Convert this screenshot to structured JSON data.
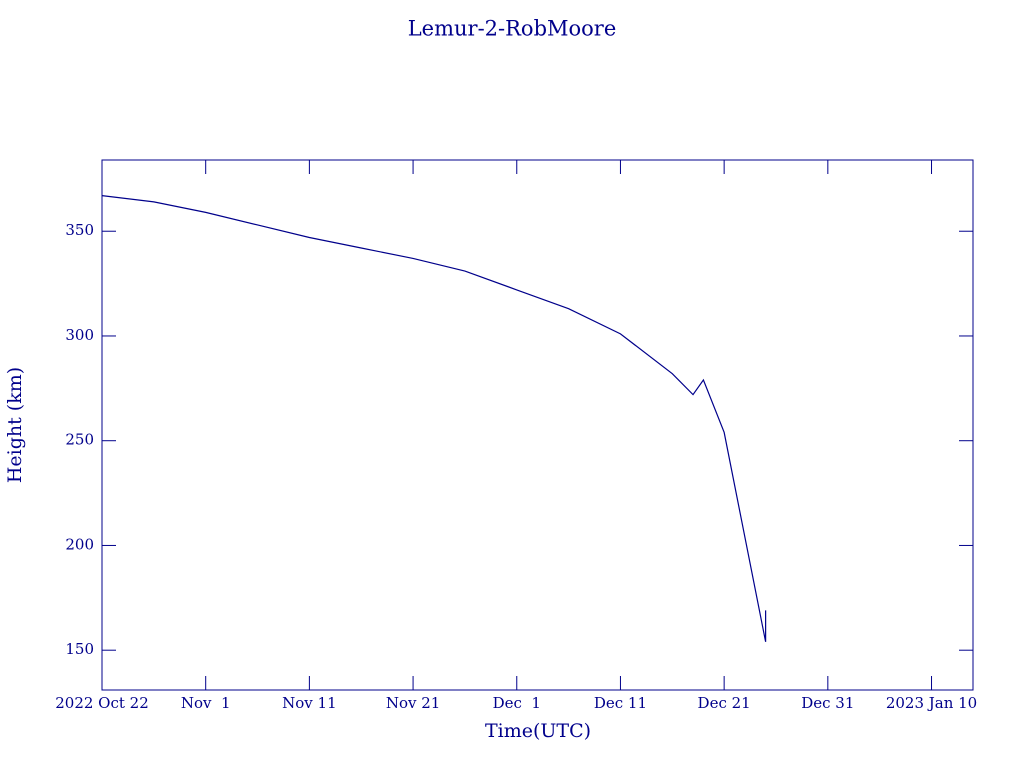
{
  "chart_data": {
    "type": "line",
    "title": "Lemur-2-RobMoore",
    "x_label": "Time(UTC)",
    "y_label": "Height (km)",
    "color": "#00008b",
    "x": [
      "2022-10-22",
      "2022-10-27",
      "2022-11-01",
      "2022-11-06",
      "2022-11-11",
      "2022-11-16",
      "2022-11-21",
      "2022-11-26",
      "2022-12-01",
      "2022-12-06",
      "2022-12-11",
      "2022-12-16",
      "2022-12-18",
      "2022-12-19",
      "2022-12-21",
      "2022-12-25",
      "2022-12-25"
    ],
    "series": [
      {
        "values": [
          367,
          364,
          359,
          353,
          347,
          342,
          337,
          331,
          322,
          313,
          301,
          282,
          272,
          279,
          254,
          154,
          169
        ]
      }
    ],
    "xlim": [
      "2022-10-22",
      "2023-01-14"
    ],
    "ylim": [
      131,
      384
    ],
    "yticks": [
      150,
      200,
      250,
      300,
      350
    ],
    "xticks": [
      {
        "value": "2022-10-22",
        "label": "2022 Oct 22"
      },
      {
        "value": "2022-11-01",
        "label": "Nov  1"
      },
      {
        "value": "2022-11-11",
        "label": "Nov 11"
      },
      {
        "value": "2022-11-21",
        "label": "Nov 21"
      },
      {
        "value": "2022-12-01",
        "label": "Dec  1"
      },
      {
        "value": "2022-12-11",
        "label": "Dec 11"
      },
      {
        "value": "2022-12-21",
        "label": "Dec 21"
      },
      {
        "value": "2022-12-31",
        "label": "Dec 31"
      },
      {
        "value": "2023-01-10",
        "label": "2023 Jan 10"
      }
    ]
  }
}
